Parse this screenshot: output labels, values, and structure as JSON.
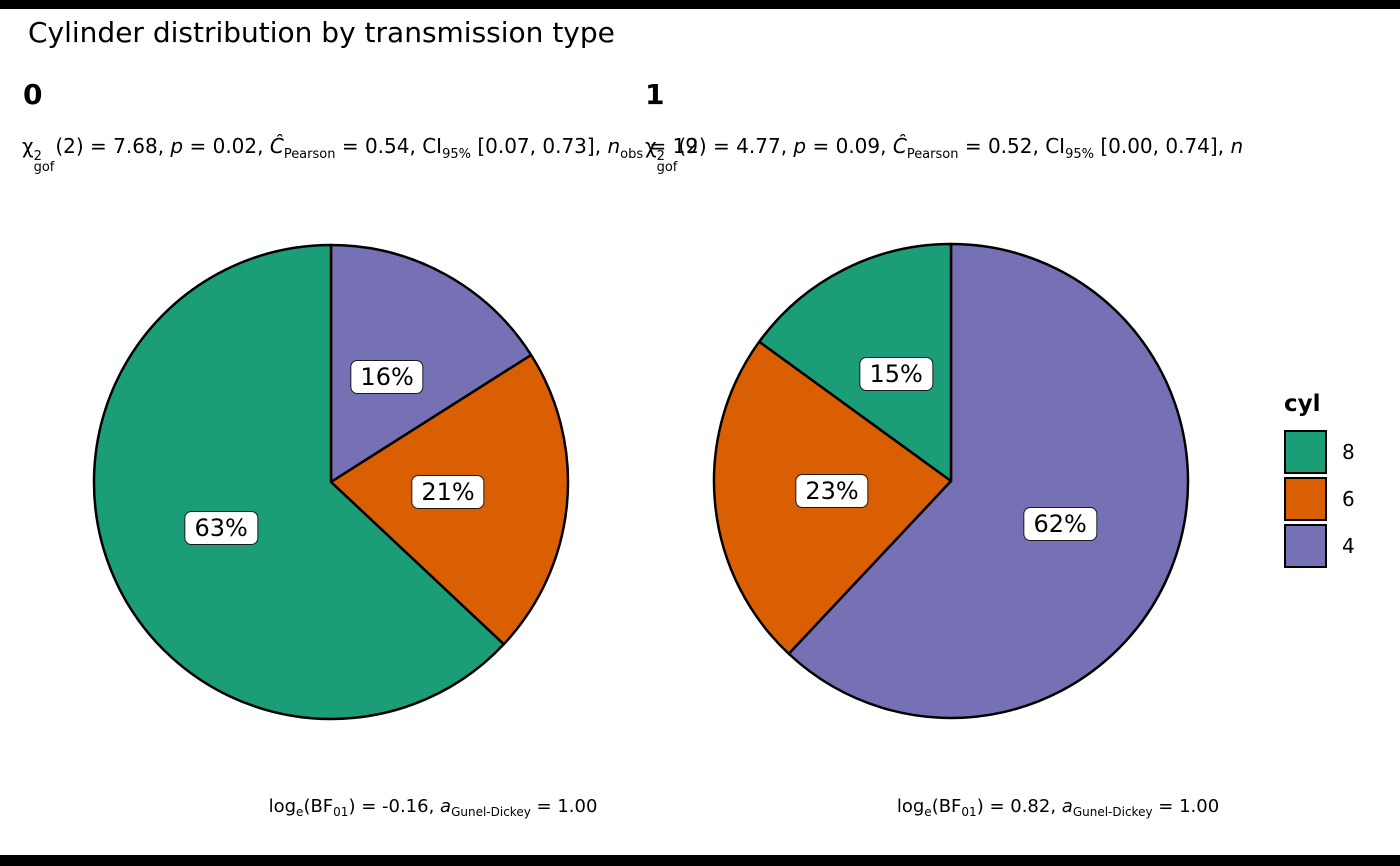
{
  "title": "Cylinder distribution by transmission type",
  "colors": {
    "cyl8": "#1B9E77",
    "cyl6": "#D95F02",
    "cyl4": "#7671B4"
  },
  "legend": {
    "title": "cyl",
    "items": [
      {
        "label": "8",
        "color_key": "cyl8"
      },
      {
        "label": "6",
        "color_key": "cyl6"
      },
      {
        "label": "4",
        "color_key": "cyl4"
      }
    ]
  },
  "facets": [
    {
      "label": "0",
      "subtitle_segments": [
        {
          "t": "χ"
        },
        {
          "stack": {
            "sup": "2",
            "sub": "gof"
          }
        },
        {
          "t": "(2) = 7.68, "
        },
        {
          "t": "p",
          "i": true
        },
        {
          "t": " = 0.02, "
        },
        {
          "t": "Ĉ",
          "i": true
        },
        {
          "sub": "Pearson"
        },
        {
          "t": " = 0.54, CI"
        },
        {
          "sub": "95%"
        },
        {
          "t": " [0.07, 0.73], "
        },
        {
          "t": "n",
          "i": true
        },
        {
          "sub": "obs"
        },
        {
          "t": " = 19"
        }
      ],
      "caption_segments": [
        {
          "t": "log"
        },
        {
          "sub": "e"
        },
        {
          "t": "(BF"
        },
        {
          "sub": "01"
        },
        {
          "t": ") = -0.16, "
        },
        {
          "t": "a",
          "i": true
        },
        {
          "sub": "Gunel-Dickey"
        },
        {
          "t": " = 1.00"
        }
      ],
      "slices": [
        {
          "cyl": "4",
          "pct": 16,
          "label": "16%"
        },
        {
          "cyl": "6",
          "pct": 21,
          "label": "21%"
        },
        {
          "cyl": "8",
          "pct": 63,
          "label": "63%"
        }
      ]
    },
    {
      "label": "1",
      "subtitle_segments": [
        {
          "t": "χ"
        },
        {
          "stack": {
            "sup": "2",
            "sub": "gof"
          }
        },
        {
          "t": "(2) = 4.77, "
        },
        {
          "t": "p",
          "i": true
        },
        {
          "t": " = 0.09, "
        },
        {
          "t": "Ĉ",
          "i": true
        },
        {
          "sub": "Pearson"
        },
        {
          "t": " = 0.52, CI"
        },
        {
          "sub": "95%"
        },
        {
          "t": " [0.00, 0.74], "
        },
        {
          "t": "n",
          "i": true
        }
      ],
      "caption_segments": [
        {
          "t": "log"
        },
        {
          "sub": "e"
        },
        {
          "t": "(BF"
        },
        {
          "sub": "01"
        },
        {
          "t": ") = 0.82, "
        },
        {
          "t": "a",
          "i": true
        },
        {
          "sub": "Gunel-Dickey"
        },
        {
          "t": " = 1.00"
        }
      ],
      "slices": [
        {
          "cyl": "4",
          "pct": 62,
          "label": "62%"
        },
        {
          "cyl": "6",
          "pct": 23,
          "label": "23%"
        },
        {
          "cyl": "8",
          "pct": 15,
          "label": "15%"
        }
      ]
    }
  ],
  "chart_data": [
    {
      "type": "pie",
      "facet": "0",
      "categories": [
        "8",
        "6",
        "4"
      ],
      "values": [
        63,
        21,
        16
      ],
      "unit": "percent of cars",
      "legend_title": "cyl",
      "title": "Cylinder distribution by transmission type",
      "slice_colors": {
        "8": "#1B9E77",
        "6": "#D95F02",
        "4": "#7671B4"
      },
      "stats_subtitle": "chi2_gof(2) = 7.68, p = 0.02, C_Pearson = 0.54, CI_95% [0.07, 0.73], n_obs = 19",
      "bayes_caption": "log_e(BF_01) = -0.16, a_Gunel-Dickey = 1.00",
      "legend_position": "right"
    },
    {
      "type": "pie",
      "facet": "1",
      "categories": [
        "8",
        "6",
        "4"
      ],
      "values": [
        15,
        23,
        62
      ],
      "unit": "percent of cars",
      "legend_title": "cyl",
      "slice_colors": {
        "8": "#1B9E77",
        "6": "#D95F02",
        "4": "#7671B4"
      },
      "stats_subtitle": "chi2_gof(2) = 4.77, p = 0.09, C_Pearson = 0.52, CI_95% [0.00, 0.74], n (clipped at edge)",
      "bayes_caption": "log_e(BF_01) = 0.82, a_Gunel-Dickey = 1.00",
      "legend_position": "right"
    }
  ]
}
